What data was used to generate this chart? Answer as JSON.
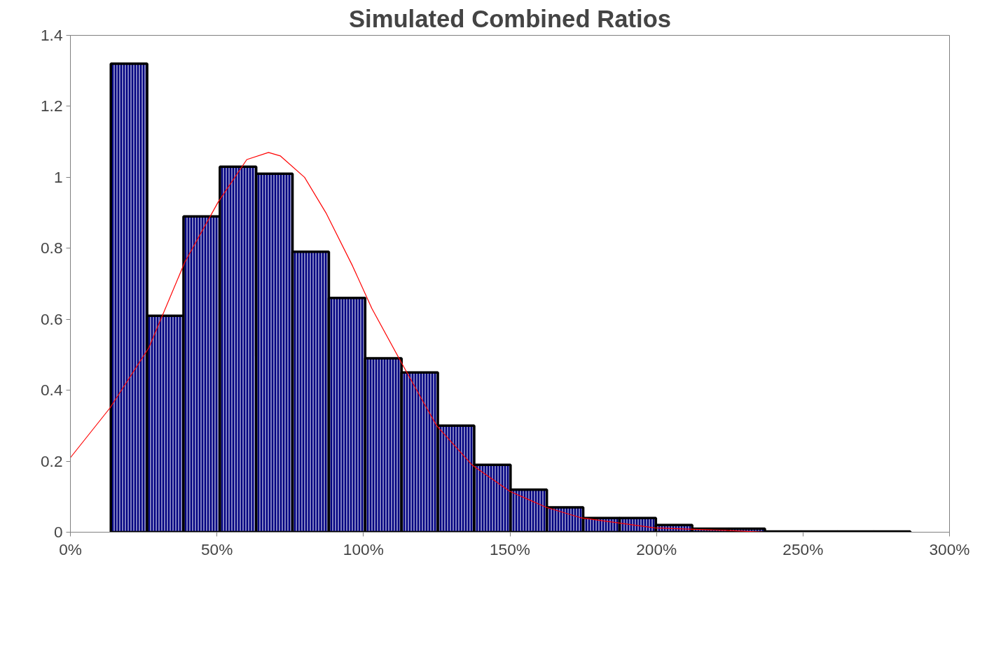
{
  "chart_data": {
    "type": "histogram",
    "title": "Simulated Combined Ratios",
    "bins": [
      13.8,
      26.2,
      38.6,
      51.0,
      63.4,
      75.8,
      88.2,
      100.6,
      113.0,
      125.4,
      137.8,
      150.2,
      162.6,
      175.0,
      187.4,
      199.8,
      212.2,
      224.6,
      237.0,
      249.4,
      261.8,
      274.2,
      286.6
    ],
    "values": [
      1.32,
      0.61,
      0.89,
      1.03,
      1.01,
      0.79,
      0.66,
      0.49,
      0.45,
      0.3,
      0.19,
      0.12,
      0.07,
      0.04,
      0.04,
      0.02,
      0.01,
      0.01,
      0.002,
      0.002,
      0.002,
      0.002
    ],
    "color": "#000080",
    "series": [
      {
        "type": "line",
        "color": "#ff0000",
        "x": [
          0,
          13.5,
          26.8,
          39,
          50.4,
          60.2,
          67.6,
          71.7,
          79.9,
          87.2,
          96.3,
          102.9,
          112.8,
          120.9,
          125,
          137,
          150,
          162.4,
          174.5,
          199.5,
          223.6,
          237
        ],
        "values": [
          0.21,
          0.35,
          0.52,
          0.76,
          0.93,
          1.05,
          1.07,
          1.06,
          1.0,
          0.9,
          0.75,
          0.63,
          0.48,
          0.36,
          0.3,
          0.19,
          0.115,
          0.07,
          0.04,
          0.012,
          0.005,
          0.0
        ]
      }
    ],
    "xlim": [
      0,
      300
    ],
    "xticks": [
      {
        "value": 0,
        "label": "0%"
      },
      {
        "value": 50,
        "label": "50%"
      },
      {
        "value": 100,
        "label": "100%"
      },
      {
        "value": 150,
        "label": "150%"
      },
      {
        "value": 200,
        "label": "200%"
      },
      {
        "value": 250,
        "label": "250%"
      },
      {
        "value": 300,
        "label": "300%"
      }
    ],
    "ylim": [
      0,
      1.4
    ],
    "yticks": [
      0,
      0.2,
      0.4,
      0.6,
      0.8,
      1,
      1.2,
      1.4
    ],
    "grid": false
  }
}
